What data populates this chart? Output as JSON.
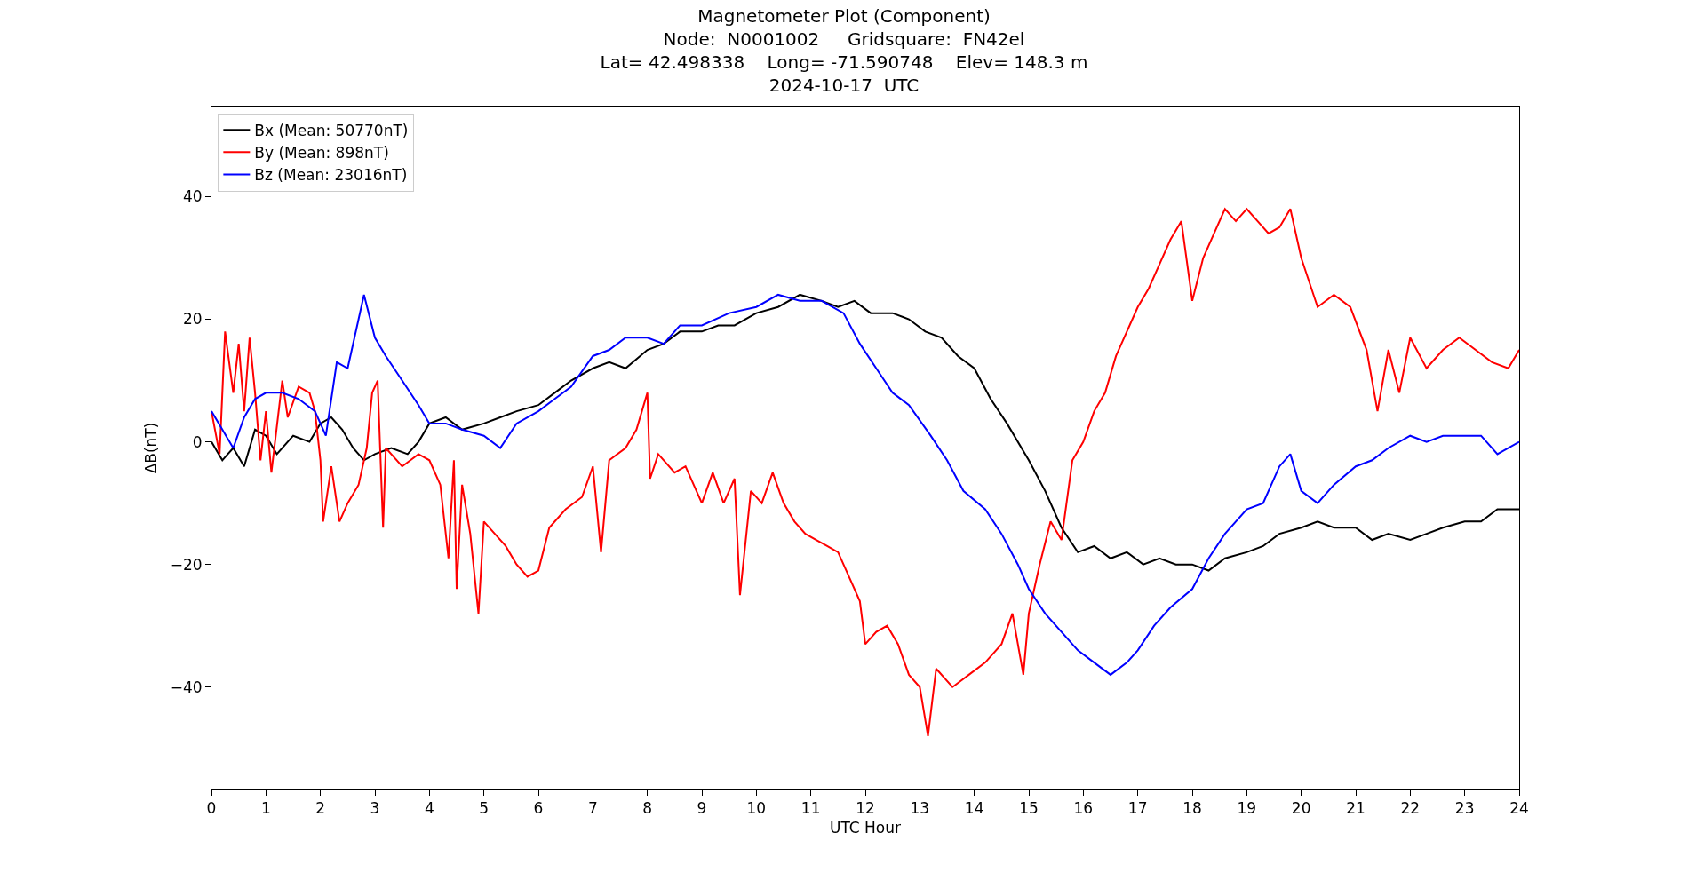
{
  "chart_data": {
    "type": "line",
    "title": "Magnetometer Plot (Component)\nNode:  N0001002     Gridsquare:  FN42el\nLat= 42.498338    Long= -71.590748    Elev= 148.3 m\n2024-10-17  UTC",
    "xlabel": "UTC Hour",
    "ylabel": "ΔB(nT)",
    "xlim": [
      0,
      24
    ],
    "xticks": [
      0,
      1,
      2,
      3,
      4,
      5,
      6,
      7,
      8,
      9,
      10,
      11,
      12,
      13,
      14,
      15,
      16,
      17,
      18,
      19,
      20,
      21,
      22,
      23,
      24
    ],
    "ylim": [
      -56.7,
      54.7
    ],
    "yticks": [
      -40,
      -20,
      0,
      20,
      40
    ],
    "grid": false,
    "legend": "top left",
    "marker": "none",
    "line_style": "solid",
    "series": [
      {
        "name": "Bx (Mean: 50770nT)",
        "color": "#000000",
        "x": [
          0,
          0.2,
          0.4,
          0.6,
          0.8,
          1.0,
          1.2,
          1.5,
          1.8,
          2.0,
          2.2,
          2.4,
          2.6,
          2.8,
          3.0,
          3.3,
          3.6,
          3.8,
          4.0,
          4.3,
          4.6,
          5.0,
          5.3,
          5.6,
          6.0,
          6.3,
          6.6,
          7.0,
          7.3,
          7.6,
          8.0,
          8.3,
          8.6,
          9.0,
          9.3,
          9.6,
          10.0,
          10.4,
          10.8,
          11.2,
          11.5,
          11.8,
          12.1,
          12.5,
          12.8,
          13.1,
          13.4,
          13.7,
          14.0,
          14.3,
          14.6,
          15.0,
          15.3,
          15.6,
          15.9,
          16.2,
          16.5,
          16.8,
          17.1,
          17.4,
          17.7,
          18.0,
          18.3,
          18.6,
          19.0,
          19.3,
          19.6,
          20.0,
          20.3,
          20.6,
          21.0,
          21.3,
          21.6,
          22.0,
          22.3,
          22.6,
          23.0,
          23.3,
          23.6,
          24.0
        ],
        "values": [
          0,
          -3,
          -1,
          -4,
          2,
          1,
          -2,
          1,
          0,
          3,
          4,
          2,
          -1,
          -3,
          -2,
          -1,
          -2,
          0,
          3,
          4,
          2,
          3,
          4,
          5,
          6,
          8,
          10,
          12,
          13,
          12,
          15,
          16,
          18,
          18,
          19,
          19,
          21,
          22,
          24,
          23,
          22,
          23,
          21,
          21,
          20,
          18,
          17,
          14,
          12,
          7,
          3,
          -3,
          -8,
          -14,
          -18,
          -17,
          -19,
          -18,
          -20,
          -19,
          -20,
          -20,
          -21,
          -19,
          -18,
          -17,
          -15,
          -14,
          -13,
          -14,
          -14,
          -16,
          -15,
          -16,
          -15,
          -14,
          -13,
          -13,
          -11,
          -11
        ]
      },
      {
        "name": "By (Mean: 898nT)",
        "color": "#ff0000",
        "x": [
          0,
          0.15,
          0.25,
          0.4,
          0.5,
          0.6,
          0.7,
          0.8,
          0.9,
          1.0,
          1.1,
          1.3,
          1.4,
          1.6,
          1.8,
          1.9,
          2.0,
          2.05,
          2.2,
          2.35,
          2.5,
          2.7,
          2.85,
          2.95,
          3.05,
          3.1,
          3.15,
          3.2,
          3.5,
          3.8,
          4.0,
          4.2,
          4.35,
          4.45,
          4.5,
          4.6,
          4.75,
          4.9,
          5.0,
          5.2,
          5.4,
          5.6,
          5.8,
          6.0,
          6.2,
          6.5,
          6.8,
          7.0,
          7.15,
          7.3,
          7.6,
          7.8,
          8.0,
          8.05,
          8.2,
          8.5,
          8.7,
          9.0,
          9.2,
          9.4,
          9.6,
          9.7,
          9.9,
          10.1,
          10.3,
          10.5,
          10.7,
          10.9,
          11.1,
          11.3,
          11.5,
          11.7,
          11.9,
          12.0,
          12.2,
          12.4,
          12.6,
          12.8,
          13.0,
          13.15,
          13.3,
          13.6,
          13.9,
          14.2,
          14.5,
          14.7,
          14.9,
          15.0,
          15.2,
          15.4,
          15.6,
          15.8,
          16.0,
          16.2,
          16.4,
          16.6,
          16.8,
          17.0,
          17.2,
          17.4,
          17.6,
          17.8,
          18.0,
          18.2,
          18.4,
          18.6,
          18.8,
          19.0,
          19.2,
          19.4,
          19.6,
          19.8,
          20.0,
          20.3,
          20.6,
          20.9,
          21.2,
          21.4,
          21.6,
          21.8,
          22.0,
          22.3,
          22.6,
          22.9,
          23.2,
          23.5,
          23.8,
          24.0
        ],
        "values": [
          5,
          -2,
          18,
          8,
          16,
          5,
          17,
          8,
          -3,
          5,
          -5,
          10,
          4,
          9,
          8,
          5,
          -3,
          -13,
          -4,
          -13,
          -10,
          -7,
          -1,
          8,
          10,
          -2,
          -14,
          -1,
          -4,
          -2,
          -3,
          -7,
          -19,
          -3,
          -24,
          -7,
          -15,
          -28,
          -13,
          -15,
          -17,
          -20,
          -22,
          -21,
          -14,
          -11,
          -9,
          -4,
          -18,
          -3,
          -1,
          2,
          8,
          -6,
          -2,
          -5,
          -4,
          -10,
          -5,
          -10,
          -6,
          -25,
          -8,
          -10,
          -5,
          -10,
          -13,
          -15,
          -16,
          -17,
          -18,
          -22,
          -26,
          -33,
          -31,
          -30,
          -33,
          -38,
          -40,
          -48,
          -37,
          -40,
          -38,
          -36,
          -33,
          -28,
          -38,
          -28,
          -20,
          -13,
          -16,
          -3,
          0,
          5,
          8,
          14,
          18,
          22,
          25,
          29,
          33,
          36,
          23,
          30,
          34,
          38,
          36,
          38,
          36,
          34,
          35,
          38,
          30,
          22,
          24,
          22,
          15,
          5,
          15,
          8,
          17,
          12,
          15,
          17,
          15,
          13,
          12,
          15
        ]
      },
      {
        "name": "Bz (Mean: 23016nT)",
        "color": "#0000ff",
        "x": [
          0,
          0.2,
          0.4,
          0.6,
          0.8,
          1.0,
          1.3,
          1.6,
          1.9,
          2.1,
          2.3,
          2.5,
          2.7,
          2.8,
          3.0,
          3.2,
          3.5,
          3.8,
          4.0,
          4.3,
          4.6,
          5.0,
          5.3,
          5.6,
          6.0,
          6.3,
          6.6,
          7.0,
          7.3,
          7.6,
          8.0,
          8.3,
          8.6,
          9.0,
          9.5,
          10.0,
          10.4,
          10.8,
          11.2,
          11.6,
          11.9,
          12.2,
          12.5,
          12.8,
          13.2,
          13.5,
          13.8,
          14.2,
          14.5,
          14.8,
          15.0,
          15.3,
          15.6,
          15.9,
          16.2,
          16.5,
          16.8,
          17.0,
          17.3,
          17.6,
          18.0,
          18.3,
          18.6,
          19.0,
          19.3,
          19.6,
          19.8,
          20.0,
          20.3,
          20.6,
          21.0,
          21.3,
          21.6,
          22.0,
          22.3,
          22.6,
          23.0,
          23.3,
          23.6,
          24.0
        ],
        "values": [
          5,
          2,
          -1,
          4,
          7,
          8,
          8,
          7,
          5,
          1,
          13,
          12,
          20,
          24,
          17,
          14,
          10,
          6,
          3,
          3,
          2,
          1,
          -1,
          3,
          5,
          7,
          9,
          14,
          15,
          17,
          17,
          16,
          19,
          19,
          21,
          22,
          24,
          23,
          23,
          21,
          16,
          12,
          8,
          6,
          1,
          -3,
          -8,
          -11,
          -15,
          -20,
          -24,
          -28,
          -31,
          -34,
          -36,
          -38,
          -36,
          -34,
          -30,
          -27,
          -24,
          -19,
          -15,
          -11,
          -10,
          -4,
          -2,
          -8,
          -10,
          -7,
          -4,
          -3,
          -1,
          1,
          0,
          1,
          1,
          1,
          -2,
          0
        ]
      }
    ]
  }
}
